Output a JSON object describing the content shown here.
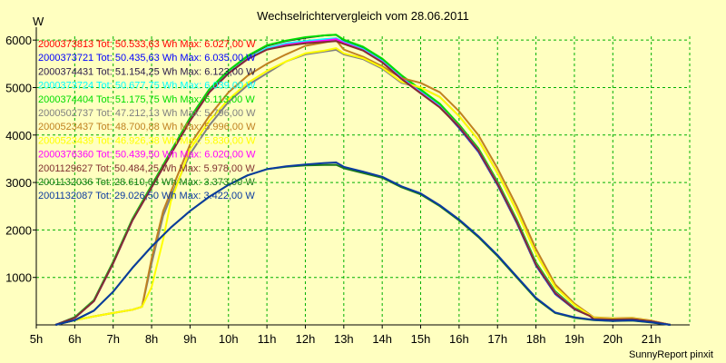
{
  "chart_data": {
    "type": "line",
    "title": "Wechselrichtervergleich vom 28.06.2011",
    "xlabel": "",
    "ylabel": "W",
    "credit": "SunnyReport pinxit",
    "xlim": [
      5,
      22
    ],
    "ylim": [
      0,
      6000
    ],
    "x_ticks": [
      "5h",
      "6h",
      "7h",
      "8h",
      "9h",
      "10h",
      "11h",
      "12h",
      "13h",
      "14h",
      "15h",
      "16h",
      "17h",
      "18h",
      "19h",
      "20h",
      "21h"
    ],
    "y_ticks": [
      "1000",
      "2000",
      "3000",
      "4000",
      "5000",
      "6000"
    ],
    "grid": true,
    "legend_position": "top-left",
    "series": [
      {
        "name": "2000373813 Tot: 50.533,63 Wh Max: 6.027,00 W",
        "color": "#ff0000",
        "x": [
          5.5,
          6,
          6.5,
          7,
          7.5,
          8,
          8.5,
          9,
          9.5,
          10,
          10.5,
          11,
          11.5,
          12,
          12.5,
          12.8,
          13,
          13.5,
          14,
          14.5,
          15,
          15.5,
          16,
          16.5,
          17,
          17.5,
          18,
          18.5,
          19,
          19.4,
          19.5,
          20,
          20.5,
          21,
          21.5
        ],
        "y": [
          0,
          150,
          500,
          1300,
          2200,
          2900,
          3600,
          4300,
          4900,
          5300,
          5600,
          5800,
          5900,
          5950,
          6000,
          6027,
          5950,
          5800,
          5550,
          5200,
          4900,
          4600,
          4200,
          3700,
          3000,
          2200,
          1300,
          700,
          350,
          200,
          130,
          120,
          130,
          80,
          0
        ]
      },
      {
        "name": "2000373721 Tot: 50.435,63 Wh Max: 6.035,00 W",
        "color": "#0000ff",
        "x": [
          5.5,
          6,
          6.5,
          7,
          7.5,
          8,
          8.5,
          9,
          9.5,
          10,
          10.5,
          11,
          11.5,
          12,
          12.5,
          12.8,
          13,
          13.5,
          14,
          14.5,
          15,
          15.5,
          16,
          16.5,
          17,
          17.5,
          18,
          18.5,
          19,
          19.4,
          19.5,
          20,
          20.5,
          21,
          21.5
        ],
        "y": [
          0,
          150,
          500,
          1300,
          2200,
          2900,
          3600,
          4300,
          4900,
          5300,
          5600,
          5820,
          5920,
          5970,
          6010,
          6035,
          5950,
          5800,
          5550,
          5200,
          4900,
          4600,
          4150,
          3650,
          2950,
          2150,
          1250,
          650,
          330,
          190,
          120,
          110,
          120,
          70,
          0
        ]
      },
      {
        "name": "2000374431 Tot: 51.154,25 Wh Max: 6.123,00 W",
        "color": "#2a1a4a",
        "x": [
          5.5,
          6,
          6.5,
          7,
          7.5,
          8,
          8.5,
          9,
          9.5,
          10,
          10.5,
          11,
          11.5,
          12,
          12.5,
          12.8,
          13,
          13.5,
          14,
          14.5,
          15,
          15.5,
          16,
          16.5,
          17,
          17.5,
          18,
          18.5,
          19,
          19.4,
          19.5,
          20,
          20.5,
          21,
          21.5
        ],
        "y": [
          0,
          160,
          520,
          1330,
          2230,
          2940,
          3650,
          4360,
          4960,
          5360,
          5660,
          5880,
          5980,
          6050,
          6100,
          6110,
          6000,
          5850,
          5600,
          5250,
          4950,
          4650,
          4200,
          3700,
          3000,
          2200,
          1300,
          700,
          350,
          200,
          130,
          120,
          130,
          80,
          0
        ]
      },
      {
        "name": "2000373724 Tot: 50.677,75 Wh Max: 6.039,00 W",
        "color": "#00ffff",
        "x": [
          5.5,
          6,
          6.5,
          7,
          7.5,
          8,
          8.5,
          9,
          9.5,
          10,
          10.5,
          11,
          11.5,
          12,
          12.5,
          12.8,
          13,
          13.5,
          14,
          14.5,
          15,
          15.5,
          16,
          16.5,
          17,
          17.5,
          18,
          18.5,
          19,
          19.4,
          19.5,
          20,
          20.5,
          21,
          21.5
        ],
        "y": [
          0,
          150,
          510,
          1310,
          2210,
          2910,
          3610,
          4310,
          4910,
          5310,
          5610,
          5830,
          5930,
          5980,
          6020,
          6039,
          5960,
          5810,
          5560,
          5210,
          4910,
          4610,
          4170,
          3670,
          2970,
          2170,
          1270,
          670,
          340,
          195,
          125,
          115,
          125,
          75,
          0
        ]
      },
      {
        "name": "2000374404 Tot: 51.175,75 Wh Max: 6.113,00 W",
        "color": "#00dd00",
        "x": [
          5.5,
          6,
          6.5,
          7,
          7.5,
          8,
          8.5,
          9,
          9.5,
          10,
          10.5,
          11,
          11.5,
          12,
          12.5,
          12.8,
          13,
          13.5,
          14,
          14.5,
          15,
          15.5,
          16,
          16.5,
          17,
          17.5,
          18,
          18.5,
          19,
          19.4,
          19.5,
          20,
          20.5,
          21,
          21.5
        ],
        "y": [
          0,
          160,
          520,
          1330,
          2230,
          2940,
          3650,
          4360,
          4960,
          5360,
          5670,
          5890,
          5990,
          6060,
          6100,
          6113,
          6010,
          5860,
          5610,
          5260,
          4960,
          4660,
          4220,
          3720,
          3020,
          2220,
          1320,
          710,
          355,
          205,
          135,
          125,
          135,
          85,
          0
        ]
      },
      {
        "name": "2000502737 Tot: 47.212,13 Wh Max: 5.796,00 W",
        "color": "#808080",
        "x": [
          5.5,
          6,
          6.5,
          7,
          7.5,
          7.75,
          8,
          8.3,
          8.5,
          9,
          9.5,
          10,
          10.5,
          11,
          11.5,
          12,
          12.5,
          12.8,
          13,
          13.5,
          14,
          14.5,
          15,
          15.5,
          16,
          16.5,
          17,
          17.5,
          18,
          18.5,
          19,
          19.5,
          20,
          20.5,
          21,
          21.5
        ],
        "y": [
          0,
          100,
          180,
          250,
          320,
          380,
          1300,
          2300,
          2700,
          3600,
          4200,
          4700,
          5050,
          5300,
          5550,
          5700,
          5760,
          5796,
          5700,
          5600,
          5400,
          5100,
          5000,
          4800,
          4400,
          3900,
          3200,
          2400,
          1500,
          800,
          420,
          150,
          130,
          140,
          80,
          0
        ]
      },
      {
        "name": "2000523437 Tot: 48.700,88 Wh Max: 5.996,00 W",
        "color": "#c08020",
        "x": [
          5.5,
          6,
          6.5,
          7,
          7.5,
          7.75,
          8,
          8.3,
          8.5,
          9,
          9.5,
          10,
          10.5,
          11,
          11.5,
          12,
          12.5,
          12.8,
          13,
          13.5,
          14,
          14.5,
          15,
          15.5,
          16,
          16.5,
          17,
          17.5,
          18,
          18.5,
          19,
          19.5,
          20,
          20.5,
          21,
          21.5
        ],
        "y": [
          0,
          100,
          180,
          250,
          320,
          380,
          1400,
          2400,
          2800,
          3800,
          4400,
          4900,
          5250,
          5500,
          5700,
          5880,
          5950,
          5996,
          5800,
          5650,
          5450,
          5200,
          5100,
          4900,
          4500,
          4000,
          3300,
          2500,
          1600,
          850,
          450,
          160,
          140,
          150,
          90,
          0
        ]
      },
      {
        "name": "2000523439 Tot: 46.926,38 Wh Max: 5.830,00 W",
        "color": "#ffff00",
        "x": [
          5.5,
          6,
          6.5,
          7,
          7.5,
          7.75,
          8,
          8.3,
          8.5,
          9,
          9.5,
          10,
          10.5,
          11,
          11.5,
          12,
          12.5,
          12.8,
          13,
          13.5,
          14,
          14.5,
          15,
          15.5,
          16,
          16.5,
          17,
          17.5,
          18,
          18.5,
          19,
          19.5,
          20,
          20.5,
          21,
          21.5
        ],
        "y": [
          0,
          100,
          180,
          250,
          320,
          380,
          800,
          1800,
          2600,
          3700,
          4300,
          4750,
          5100,
          5350,
          5550,
          5720,
          5780,
          5830,
          5720,
          5620,
          5420,
          5120,
          5000,
          4800,
          4400,
          3900,
          3200,
          2400,
          1500,
          800,
          420,
          150,
          130,
          140,
          80,
          0
        ]
      },
      {
        "name": "2000376360 Tot: 50.439,50 Wh Max: 6.020,00 W",
        "color": "#ff00ff",
        "x": [
          5.5,
          6,
          6.5,
          7,
          7.5,
          8,
          8.5,
          9,
          9.5,
          10,
          10.5,
          11,
          11.5,
          12,
          12.5,
          12.8,
          13,
          13.5,
          14,
          14.5,
          15,
          15.5,
          16,
          16.5,
          17,
          17.5,
          18,
          18.5,
          19,
          19.4,
          19.5,
          20,
          20.5,
          21,
          21.5
        ],
        "y": [
          0,
          150,
          500,
          1300,
          2200,
          2900,
          3600,
          4300,
          4900,
          5300,
          5600,
          5800,
          5900,
          5950,
          5990,
          6020,
          5940,
          5790,
          5540,
          5190,
          4890,
          4590,
          4180,
          3680,
          2980,
          2180,
          1280,
          680,
          340,
          190,
          125,
          115,
          125,
          75,
          0
        ]
      },
      {
        "name": "2001129627 Tot: 50.484,25 Wh Max: 5.978,00 W",
        "color": "#803030",
        "x": [
          5.5,
          6,
          6.5,
          7,
          7.5,
          8,
          8.5,
          9,
          9.5,
          10,
          10.5,
          11,
          11.5,
          12,
          12.5,
          12.8,
          13,
          13.5,
          14,
          14.5,
          15,
          15.5,
          16,
          16.5,
          17,
          17.5,
          18,
          18.5,
          19,
          19.4,
          19.5,
          20,
          20.5,
          21,
          21.5
        ],
        "y": [
          0,
          150,
          500,
          1300,
          2200,
          2900,
          3600,
          4300,
          4900,
          5300,
          5600,
          5800,
          5880,
          5930,
          5960,
          5978,
          5920,
          5780,
          5530,
          5180,
          4880,
          4580,
          4170,
          3670,
          2970,
          2170,
          1270,
          670,
          335,
          190,
          125,
          115,
          125,
          75,
          0
        ]
      },
      {
        "name": "2001132036 Tot: 28.610,63 Wh Max: 3.373,00 W",
        "color": "#1a7a1a",
        "x": [
          5.5,
          6,
          6.5,
          7,
          7.5,
          8,
          8.5,
          9,
          9.5,
          10,
          10.5,
          11,
          11.5,
          12,
          12.5,
          12.8,
          13,
          13.5,
          14,
          14.5,
          15,
          15.5,
          16,
          16.5,
          17,
          17.5,
          18,
          18.5,
          19,
          19.5,
          20,
          20.5,
          21,
          21.5
        ],
        "y": [
          0,
          100,
          300,
          700,
          1200,
          1650,
          2050,
          2400,
          2700,
          2950,
          3150,
          3280,
          3330,
          3360,
          3370,
          3373,
          3300,
          3200,
          3100,
          2900,
          2750,
          2500,
          2200,
          1850,
          1450,
          1000,
          550,
          250,
          150,
          100,
          80,
          90,
          50,
          0
        ]
      },
      {
        "name": "2001132087 Tot: 29.026,50 Wh Max: 3.422,00 W",
        "color": "#0a3aa0",
        "x": [
          5.5,
          6,
          6.5,
          7,
          7.5,
          8,
          8.5,
          9,
          9.5,
          10,
          10.5,
          11,
          11.5,
          12,
          12.5,
          12.8,
          13,
          13.5,
          14,
          14.5,
          15,
          15.5,
          16,
          16.5,
          17,
          17.5,
          18,
          18.5,
          19,
          19.5,
          20,
          20.5,
          21,
          21.5
        ],
        "y": [
          0,
          100,
          300,
          700,
          1200,
          1650,
          2050,
          2400,
          2700,
          2950,
          3150,
          3280,
          3340,
          3380,
          3410,
          3422,
          3330,
          3230,
          3120,
          2920,
          2770,
          2520,
          2220,
          1870,
          1470,
          1020,
          570,
          260,
          160,
          105,
          85,
          95,
          55,
          0
        ]
      }
    ]
  }
}
